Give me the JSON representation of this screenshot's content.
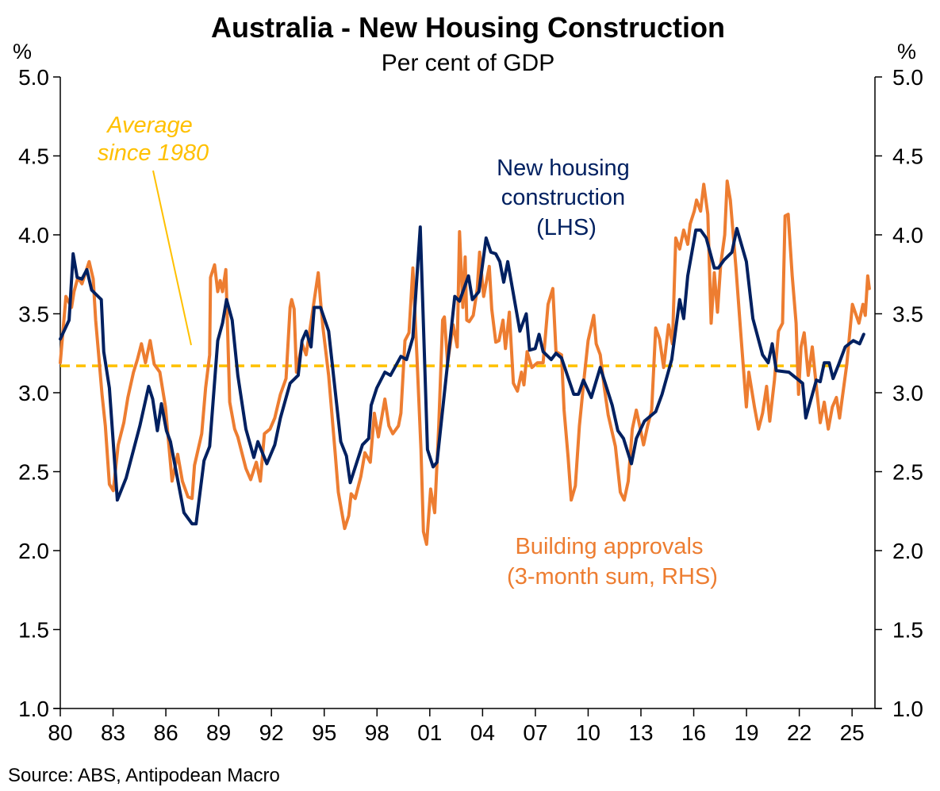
{
  "title": "Australia - New Housing Construction",
  "subtitle": "Per cent of GDP",
  "source": "Source: ABS, Antipodean Macro",
  "colors": {
    "construction": "#002060",
    "approvals": "#ED7D31",
    "average": "#FFC000",
    "axis": "#000000"
  },
  "chart_data": {
    "type": "line",
    "title": "Australia - New Housing Construction",
    "subtitle": "Per cent of GDP",
    "ylabel_left": "%",
    "ylabel_right": "%",
    "ylim": [
      1.0,
      5.0
    ],
    "xlim": [
      1980,
      2026.3
    ],
    "yticks": [
      "1.0",
      "1.5",
      "2.0",
      "2.5",
      "3.0",
      "3.5",
      "4.0",
      "4.5",
      "5.0"
    ],
    "ytick_values": [
      1.0,
      1.5,
      2.0,
      2.5,
      3.0,
      3.5,
      4.0,
      4.5,
      5.0
    ],
    "xtick_values": [
      1980,
      1983,
      1986,
      1989,
      1992,
      1995,
      1998,
      2001,
      2004,
      2007,
      2010,
      2013,
      2016,
      2019,
      2022,
      2025
    ],
    "xticks": [
      "80",
      "83",
      "86",
      "89",
      "92",
      "95",
      "98",
      "01",
      "04",
      "07",
      "10",
      "13",
      "16",
      "19",
      "22",
      "25"
    ],
    "grid": false,
    "average": {
      "value": 3.17,
      "label_lines": [
        "Average",
        "since 1980"
      ]
    },
    "series": [
      {
        "name": "New housing construction (LHS)",
        "label_lines": [
          "New housing",
          "construction",
          "(LHS)"
        ],
        "axis": "left",
        "x": [
          1980.0,
          1980.5,
          1980.73,
          1980.96,
          1981.23,
          1981.51,
          1981.78,
          1982.33,
          1982.47,
          1982.79,
          1983.24,
          1983.74,
          1984.52,
          1985.02,
          1985.25,
          1985.52,
          1985.75,
          1986.03,
          1986.26,
          1987.03,
          1987.49,
          1987.72,
          1988.17,
          1988.49,
          1988.95,
          1989.22,
          1989.45,
          1989.77,
          1990.09,
          1990.55,
          1991.0,
          1991.23,
          1991.74,
          1992.19,
          1992.51,
          1993.06,
          1993.52,
          1993.74,
          1993.97,
          1994.25,
          1994.43,
          1994.79,
          1995.25,
          1995.94,
          1996.26,
          1996.48,
          1997.17,
          1997.53,
          1997.67,
          1997.99,
          1998.45,
          1998.77,
          1999.36,
          1999.68,
          2000.04,
          2000.46,
          2000.87,
          2001.19,
          2001.41,
          2002.42,
          2002.69,
          2003.2,
          2003.42,
          2003.79,
          2004.2,
          2004.47,
          2004.75,
          2004.98,
          2005.2,
          2005.43,
          2006.12,
          2006.48,
          2006.67,
          2006.99,
          2007.21,
          2007.44,
          2007.9,
          2008.17,
          2008.49,
          2009.18,
          2009.45,
          2009.73,
          2010.18,
          2010.69,
          2011.37,
          2011.69,
          2012.01,
          2012.46,
          2012.74,
          2013.2,
          2013.84,
          2014.2,
          2014.75,
          2015.2,
          2015.43,
          2015.66,
          2016.12,
          2016.39,
          2016.71,
          2017.17,
          2017.4,
          2017.72,
          2018.17,
          2018.45,
          2018.99,
          2019.36,
          2019.91,
          2020.23,
          2020.46,
          2020.69,
          2021.41,
          2022.19,
          2022.37,
          2022.97,
          2023.19,
          2023.42,
          2023.7,
          2023.92,
          2024.24,
          2024.61,
          2025.07,
          2025.43,
          2025.66
        ],
        "y": [
          3.34,
          3.46,
          3.88,
          3.73,
          3.72,
          3.78,
          3.65,
          3.59,
          3.26,
          3.03,
          2.32,
          2.46,
          2.79,
          3.04,
          2.96,
          2.76,
          2.93,
          2.76,
          2.69,
          2.24,
          2.17,
          2.17,
          2.57,
          2.66,
          3.33,
          3.44,
          3.59,
          3.46,
          3.11,
          2.77,
          2.59,
          2.69,
          2.55,
          2.67,
          2.84,
          3.06,
          3.11,
          3.33,
          3.39,
          3.29,
          3.54,
          3.54,
          3.39,
          2.69,
          2.6,
          2.43,
          2.67,
          2.71,
          2.92,
          3.03,
          3.13,
          3.11,
          3.23,
          3.21,
          3.35,
          4.05,
          2.64,
          2.53,
          2.56,
          3.61,
          3.58,
          3.74,
          3.59,
          3.64,
          3.98,
          3.89,
          3.88,
          3.83,
          3.7,
          3.83,
          3.39,
          3.5,
          3.27,
          3.28,
          3.37,
          3.26,
          3.21,
          3.25,
          3.22,
          2.99,
          2.99,
          3.08,
          2.97,
          3.16,
          2.92,
          2.76,
          2.71,
          2.55,
          2.71,
          2.82,
          2.88,
          2.99,
          3.21,
          3.59,
          3.47,
          3.74,
          4.03,
          4.03,
          3.98,
          3.79,
          3.79,
          3.84,
          3.89,
          4.04,
          3.83,
          3.47,
          3.24,
          3.19,
          3.31,
          3.14,
          3.13,
          3.06,
          2.84,
          3.08,
          3.07,
          3.19,
          3.19,
          3.09,
          3.18,
          3.29,
          3.33,
          3.31,
          3.37
        ]
      },
      {
        "name": "Building approvals (3-month sum, RHS)",
        "label_lines": [
          "Building approvals",
          "(3-month sum, RHS)"
        ],
        "axis": "right",
        "x": [
          1980.0,
          1980.32,
          1980.64,
          1980.78,
          1981.0,
          1981.23,
          1981.64,
          1981.87,
          1982.01,
          1982.15,
          1982.37,
          1982.56,
          1982.79,
          1983.01,
          1983.29,
          1983.61,
          1983.84,
          1984.16,
          1984.38,
          1984.61,
          1984.84,
          1985.11,
          1985.34,
          1985.66,
          1985.98,
          1986.35,
          1986.67,
          1986.94,
          1987.26,
          1987.49,
          1987.63,
          1988.04,
          1988.26,
          1988.49,
          1988.54,
          1988.77,
          1988.95,
          1989.09,
          1989.22,
          1989.41,
          1989.63,
          1989.91,
          1990.09,
          1990.55,
          1990.82,
          1991.14,
          1991.37,
          1991.6,
          1991.92,
          1992.19,
          1992.51,
          1992.83,
          1993.06,
          1993.15,
          1993.29,
          1993.42,
          1993.74,
          1993.97,
          1994.2,
          1994.66,
          1994.79,
          1994.93,
          1995.25,
          1995.62,
          1995.8,
          1996.16,
          1996.39,
          1996.53,
          1996.76,
          1997.08,
          1997.31,
          1997.62,
          1997.85,
          1998.08,
          1998.45,
          1998.68,
          1998.9,
          1999.22,
          1999.36,
          1999.59,
          1999.82,
          2000.04,
          2000.27,
          2000.5,
          2000.64,
          2000.82,
          2001.05,
          2001.28,
          2001.51,
          2001.73,
          2001.83,
          2002.01,
          2002.33,
          2002.56,
          2002.69,
          2002.88,
          2003.01,
          2003.1,
          2003.24,
          2003.47,
          2003.7,
          2003.83,
          2004.06,
          2004.38,
          2004.52,
          2004.75,
          2004.93,
          2005.16,
          2005.3,
          2005.52,
          2005.75,
          2005.98,
          2006.21,
          2006.35,
          2006.53,
          2006.8,
          2007.12,
          2007.44,
          2007.72,
          2007.99,
          2008.17,
          2008.49,
          2008.63,
          2008.86,
          2009.04,
          2009.27,
          2009.5,
          2009.77,
          2010.0,
          2010.32,
          2010.46,
          2010.69,
          2010.91,
          2011.14,
          2011.55,
          2011.83,
          2012.05,
          2012.28,
          2012.51,
          2012.74,
          2012.97,
          2013.15,
          2013.38,
          2013.61,
          2013.84,
          2014.06,
          2014.29,
          2014.57,
          2014.79,
          2014.98,
          2015.2,
          2015.43,
          2015.66,
          2015.8,
          2016.03,
          2016.16,
          2016.39,
          2016.57,
          2016.8,
          2016.99,
          2017.17,
          2017.35,
          2017.53,
          2017.76,
          2017.9,
          2018.08,
          2018.4,
          2018.67,
          2018.99,
          2019.13,
          2019.45,
          2019.68,
          2019.91,
          2020.14,
          2020.32,
          2020.59,
          2020.82,
          2021.05,
          2021.19,
          2021.37,
          2021.6,
          2021.82,
          2021.96,
          2022.1,
          2022.28,
          2022.51,
          2022.74,
          2022.97,
          2023.19,
          2023.42,
          2023.65,
          2023.88,
          2024.11,
          2024.29,
          2024.47,
          2024.7,
          2025.02,
          2025.39,
          2025.62,
          2025.75,
          2025.89,
          2025.98
        ],
        "y": [
          3.19,
          3.61,
          3.54,
          3.64,
          3.73,
          3.69,
          3.83,
          3.72,
          3.46,
          3.28,
          2.99,
          2.79,
          2.42,
          2.38,
          2.67,
          2.81,
          2.97,
          3.13,
          3.21,
          3.31,
          3.19,
          3.33,
          3.18,
          3.13,
          2.91,
          2.44,
          2.61,
          2.44,
          2.34,
          2.33,
          2.54,
          2.74,
          3.03,
          3.24,
          3.73,
          3.81,
          3.64,
          3.71,
          3.64,
          3.78,
          2.94,
          2.77,
          2.72,
          2.52,
          2.45,
          2.56,
          2.44,
          2.74,
          2.77,
          2.84,
          2.99,
          3.09,
          3.54,
          3.59,
          3.53,
          3.13,
          3.31,
          3.24,
          3.41,
          3.76,
          3.58,
          3.41,
          3.11,
          2.62,
          2.37,
          2.14,
          2.22,
          2.36,
          2.33,
          2.47,
          2.62,
          2.56,
          2.87,
          2.72,
          2.96,
          2.79,
          2.74,
          2.79,
          2.87,
          3.33,
          3.38,
          3.79,
          3.23,
          2.64,
          2.12,
          2.04,
          2.39,
          2.24,
          2.79,
          3.46,
          3.48,
          3.19,
          3.43,
          3.29,
          4.02,
          3.54,
          3.86,
          3.46,
          3.45,
          3.49,
          3.66,
          3.89,
          3.61,
          3.8,
          3.53,
          3.32,
          3.33,
          3.46,
          3.28,
          3.51,
          3.06,
          3.01,
          3.13,
          3.05,
          3.26,
          3.16,
          3.19,
          3.19,
          3.56,
          3.66,
          3.26,
          3.24,
          2.89,
          2.59,
          2.32,
          2.41,
          2.79,
          3.09,
          3.33,
          3.49,
          3.31,
          3.24,
          3.04,
          2.86,
          2.66,
          2.37,
          2.32,
          2.44,
          2.77,
          2.89,
          2.77,
          2.67,
          2.79,
          2.89,
          3.41,
          3.34,
          3.16,
          3.43,
          3.31,
          3.98,
          3.91,
          4.03,
          3.94,
          4.07,
          4.15,
          4.22,
          4.15,
          4.32,
          4.13,
          3.44,
          3.76,
          3.51,
          3.81,
          4.0,
          4.34,
          4.22,
          3.79,
          3.38,
          2.91,
          3.13,
          2.91,
          2.77,
          2.87,
          3.04,
          2.82,
          3.08,
          3.39,
          3.44,
          4.12,
          4.13,
          3.74,
          3.44,
          2.99,
          3.29,
          3.38,
          3.11,
          3.29,
          3.04,
          2.81,
          2.94,
          2.77,
          2.91,
          2.97,
          2.84,
          2.99,
          3.18,
          3.56,
          3.44,
          3.56,
          3.49,
          3.74,
          3.66
        ]
      }
    ]
  }
}
